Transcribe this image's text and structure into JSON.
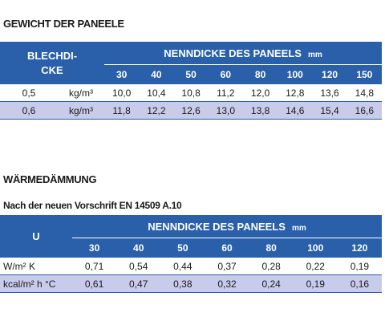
{
  "section1": {
    "title": "GEWICHT DER PANEELE",
    "table": {
      "corner_label": [
        "BLECHDI-",
        "CKE"
      ],
      "header": {
        "title": "NENNDICKE DES PANEELS",
        "unit": "mm"
      },
      "columns": [
        "30",
        "40",
        "50",
        "60",
        "80",
        "100",
        "120",
        "150"
      ],
      "rows": [
        {
          "thickness": "0,5",
          "unit": "kg/m³",
          "values": [
            "10,0",
            "10,4",
            "10,8",
            "11,2",
            "12,0",
            "12,8",
            "13,6",
            "14,8"
          ]
        },
        {
          "thickness": "0,6",
          "unit": "kg/m³",
          "values": [
            "11,8",
            "12,2",
            "12,6",
            "13,0",
            "13,8",
            "14,6",
            "15,4",
            "16,6"
          ]
        }
      ]
    }
  },
  "section2": {
    "title": "WÄRMEDÄMMUNG",
    "subtitle": "Nach der neuen Vorschrift EN 14509 A.10",
    "table": {
      "corner_label": "U",
      "header": {
        "title": "NENNDICKE DES PANEELS",
        "unit": "mm"
      },
      "columns": [
        "30",
        "40",
        "50",
        "60",
        "80",
        "100",
        "120"
      ],
      "rows": [
        {
          "unit": "W/m² K",
          "values": [
            "0,71",
            "0,54",
            "0,44",
            "0,37",
            "0,28",
            "0,22",
            "0,19"
          ]
        },
        {
          "unit": "kcal/m² h °C",
          "values": [
            "0,61",
            "0,47",
            "0,38",
            "0,32",
            "0,24",
            "0,19",
            "0,16"
          ]
        }
      ]
    }
  }
}
